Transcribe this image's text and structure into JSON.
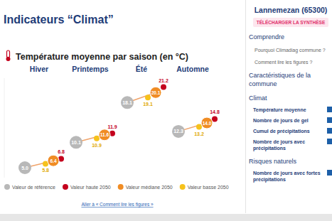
{
  "page": {
    "title": "Indicateurs “Climat”",
    "link": "Aller à « Comment lire les figures »"
  },
  "sidebar": {
    "commune": "Lannemezan (65300)",
    "button": "TÉLÉCHARGER LA SYNTHÈSE",
    "sections": [
      {
        "title": "Comprendre",
        "items": [
          "Pourquoi Climadiag commune ?",
          "Comment lire les figures ?"
        ]
      },
      {
        "title": "Caractéristiques de la commune"
      },
      {
        "title": "Climat",
        "items": [
          "Température moyenne",
          "Nombre de jours de gel",
          "Cumul de précipitations",
          "Nombre de jours avec précipitations"
        ]
      },
      {
        "title": "Risques naturels",
        "items": [
          "Nombre de jours avec fortes précipitations"
        ]
      }
    ]
  },
  "chart_data": {
    "type": "dot",
    "title": "Température moyenne par saison (en °C)",
    "categories": [
      "Hiver",
      "Printemps",
      "Été",
      "Automne"
    ],
    "series": [
      {
        "name": "Valeur de référence",
        "color": "#b8b8b8",
        "values": [
          5.0,
          10.1,
          18.1,
          12.3
        ],
        "value_labels": [
          "5.0",
          "10.1",
          "18.1",
          "12.3"
        ]
      },
      {
        "name": "Valeur haute 2050",
        "color": "#c4001d",
        "values": [
          6.8,
          11.9,
          21.2,
          14.8
        ],
        "value_labels": [
          "6.8",
          "11.9",
          "21.2",
          "14.8"
        ]
      },
      {
        "name": "Valeur médiane 2050",
        "color": "#f08c24",
        "values": [
          6.4,
          11.6,
          20.1,
          14.0
        ],
        "value_labels": [
          "6.4",
          "11.6",
          "20.1",
          "14.0"
        ]
      },
      {
        "name": "Valeur basse 2050",
        "color": "#f6c21b",
        "values": [
          5.8,
          10.9,
          19.1,
          13.2
        ],
        "value_labels": [
          "5.8",
          "10.9",
          "19.1",
          "13.2"
        ]
      }
    ],
    "ylim": [
      3,
      23
    ],
    "data_labels": true,
    "tick_labels": "x"
  }
}
